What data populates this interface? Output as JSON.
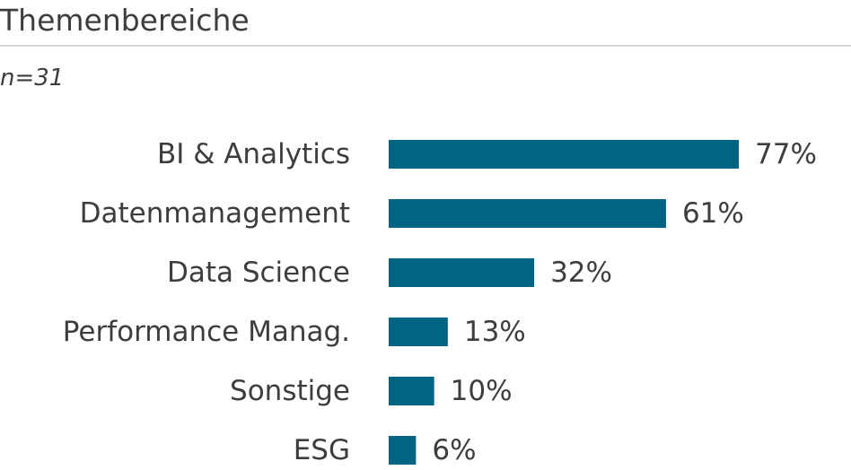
{
  "header": {
    "title": "Themenbereiche",
    "subtitle": "n=31"
  },
  "colors": {
    "bar": "#006482",
    "text": "#3d3d3d",
    "rule": "#d9d9d9"
  },
  "chart_data": {
    "type": "bar",
    "orientation": "horizontal",
    "title": "Themenbereiche",
    "subtitle": "n=31",
    "categories": [
      "BI & Analytics",
      "Datenmanagement",
      "Data Science",
      "Performance Manag.",
      "Sonstige",
      "ESG"
    ],
    "values": [
      77,
      61,
      32,
      13,
      10,
      6
    ],
    "value_labels": [
      "77%",
      "61%",
      "32%",
      "13%",
      "10%",
      "6%"
    ],
    "unit": "%",
    "xlim": [
      0,
      100
    ],
    "grid": false,
    "legend": "none"
  }
}
